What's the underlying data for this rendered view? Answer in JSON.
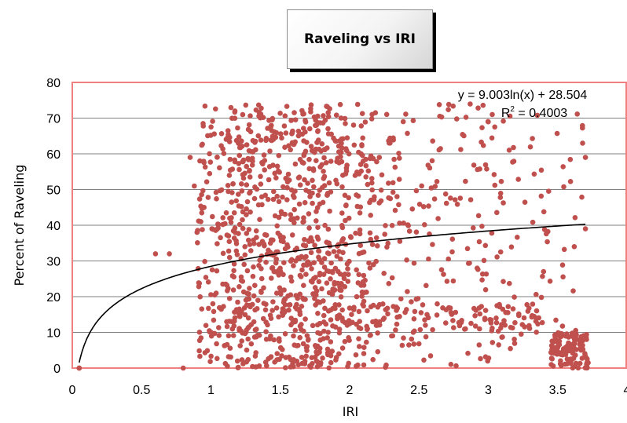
{
  "chart_data": {
    "type": "scatter",
    "title": "Raveling vs IRI",
    "xlabel": "IRI",
    "ylabel": "Percent of Raveling",
    "xlim": [
      0,
      4
    ],
    "ylim": [
      0,
      80
    ],
    "x_ticks": [
      "0",
      "0.5",
      "1",
      "1.5",
      "2",
      "2.5",
      "3",
      "3.5",
      "4"
    ],
    "y_ticks": [
      "0",
      "10",
      "20",
      "30",
      "40",
      "50",
      "60",
      "70",
      "80"
    ],
    "grid": "horizontal major gridlines",
    "legend": "none",
    "trendline": {
      "type": "logarithmic",
      "a": 9.003,
      "b": 28.504,
      "x_range": [
        0.05,
        3.7
      ],
      "equation": "y = 9.003ln(x) + 28.504",
      "r2_prefix": "R",
      "r2_sup": "2",
      "r2_value": " = 0.4003"
    },
    "colors": {
      "points": "#c0504d",
      "plot_border": "#f08080",
      "gridline": "#7f7f7f",
      "trendline": "#000000"
    },
    "series": [
      {
        "clusters": [
          {
            "x": [
              0.9,
              2.2
            ],
            "y": [
              0,
              74
            ],
            "n": 620
          },
          {
            "x": [
              1.1,
              2.0
            ],
            "y": [
              0,
              74
            ],
            "n": 320
          },
          {
            "x": [
              2.2,
              3.2
            ],
            "y": [
              0,
              74
            ],
            "n": 200
          },
          {
            "x": [
              1.0,
              3.4
            ],
            "y": [
              10,
              18
            ],
            "n": 150
          },
          {
            "x": [
              3.2,
              3.7
            ],
            "y": [
              0,
              74
            ],
            "n": 45
          },
          {
            "x": [
              3.45,
              3.72
            ],
            "y": [
              0,
              10
            ],
            "n": 110
          }
        ],
        "points": [
          [
            0.05,
            0
          ],
          [
            0.05,
            0
          ],
          [
            0.6,
            32
          ],
          [
            0.7,
            32
          ],
          [
            0.8,
            0
          ],
          [
            0.85,
            59
          ],
          [
            0.88,
            51
          ],
          [
            0.9,
            38
          ],
          [
            0.92,
            58
          ],
          [
            0.95,
            45
          ],
          [
            3.68,
            63
          ],
          [
            3.7,
            59
          ],
          [
            3.7,
            39
          ],
          [
            3.62,
            34
          ]
        ]
      }
    ]
  }
}
